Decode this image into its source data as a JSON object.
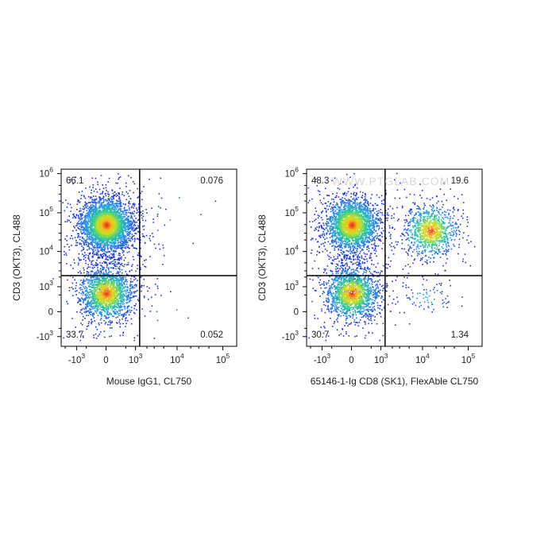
{
  "watermark": "WWW.PTGLAB.COM",
  "chart_data": [
    {
      "type": "scatter",
      "subtype": "flow cytometry density dot plot",
      "xlabel": "Mouse IgG1, CL750",
      "ylabel": "CD3 (OKT3), CL488",
      "x_scale": "biexponential",
      "y_scale": "biexponential",
      "x_ticks": [
        {
          "base": "-10",
          "exp": "3",
          "value": -1000
        },
        {
          "base": "0",
          "exp": "",
          "value": 0
        },
        {
          "base": "10",
          "exp": "3",
          "value": 1000
        },
        {
          "base": "10",
          "exp": "4",
          "value": 10000
        },
        {
          "base": "10",
          "exp": "5",
          "value": 100000
        }
      ],
      "y_ticks": [
        {
          "base": "-10",
          "exp": "3",
          "value": -1000
        },
        {
          "base": "0",
          "exp": "",
          "value": 0
        },
        {
          "base": "10",
          "exp": "3",
          "value": 1000
        },
        {
          "base": "10",
          "exp": "4",
          "value": 10000
        },
        {
          "base": "10",
          "exp": "5",
          "value": 100000
        },
        {
          "base": "10",
          "exp": "6",
          "value": 1000000
        }
      ],
      "gate": {
        "x": 1300,
        "y": 2200
      },
      "quadrants": {
        "upper_left": "66.1",
        "upper_right": "0.076",
        "lower_left": "33.7",
        "lower_right": "0.052"
      },
      "populations": [
        {
          "x_center": 0,
          "y_center": 50000,
          "share": 0.661
        },
        {
          "x_center": 0,
          "y_center": 600,
          "share": 0.337
        },
        {
          "x_center": 6000,
          "y_center": 80000,
          "share": 0.00076
        },
        {
          "x_center": 6000,
          "y_center": 500,
          "share": 0.00052
        }
      ]
    },
    {
      "type": "scatter",
      "subtype": "flow cytometry density dot plot",
      "xlabel": "65146-1-Ig CD8 (SK1), FlexAble CL750",
      "ylabel": "CD3 (OKT3), CL488",
      "x_scale": "biexponential",
      "y_scale": "biexponential",
      "x_ticks": [
        {
          "base": "-10",
          "exp": "3",
          "value": -1000
        },
        {
          "base": "0",
          "exp": "",
          "value": 0
        },
        {
          "base": "10",
          "exp": "3",
          "value": 1000
        },
        {
          "base": "10",
          "exp": "4",
          "value": 10000
        },
        {
          "base": "10",
          "exp": "5",
          "value": 100000
        }
      ],
      "y_ticks": [
        {
          "base": "-10",
          "exp": "3",
          "value": -1000
        },
        {
          "base": "0",
          "exp": "",
          "value": 0
        },
        {
          "base": "10",
          "exp": "3",
          "value": 1000
        },
        {
          "base": "10",
          "exp": "4",
          "value": 10000
        },
        {
          "base": "10",
          "exp": "5",
          "value": 100000
        },
        {
          "base": "10",
          "exp": "6",
          "value": 1000000
        }
      ],
      "gate": {
        "x": 1300,
        "y": 2200
      },
      "quadrants": {
        "upper_left": "48.3",
        "upper_right": "19.6",
        "lower_left": "30.7",
        "lower_right": "1.34"
      },
      "populations": [
        {
          "x_center": 0,
          "y_center": 50000,
          "share": 0.483
        },
        {
          "x_center": 15000,
          "y_center": 35000,
          "share": 0.196
        },
        {
          "x_center": 0,
          "y_center": 600,
          "share": 0.307
        },
        {
          "x_center": 12000,
          "y_center": 400,
          "share": 0.0134
        }
      ]
    }
  ],
  "colors": {
    "low_density": "#1f35d6",
    "mid_density": "#2ec9a0",
    "high_density": "#f2e21a",
    "peak_density": "#e8281e",
    "gate_line": "#000000",
    "axis": "#000000"
  }
}
